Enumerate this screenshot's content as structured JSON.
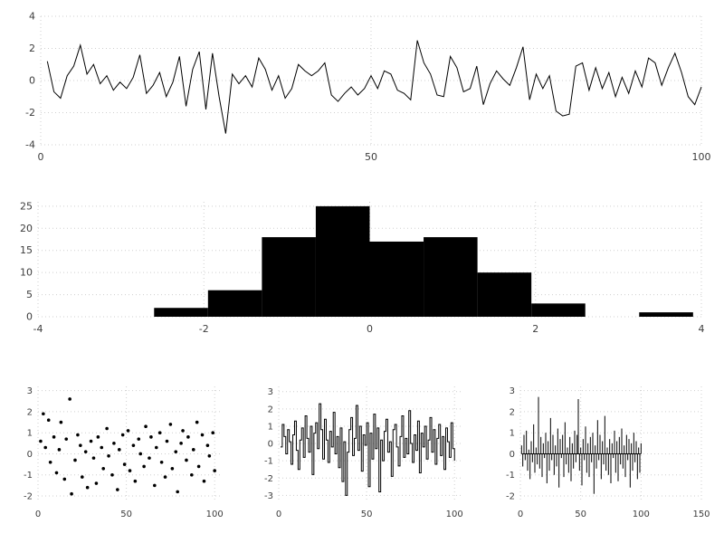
{
  "figure": {
    "background": "#ffffff",
    "series_color": "#000000",
    "grid_color": "#cfcfcf",
    "tick_label_color": "#3c3c3c"
  },
  "chart_data": [
    {
      "id": "line",
      "type": "line",
      "title": "",
      "xlabel": "",
      "ylabel": "",
      "xlim": [
        0,
        100
      ],
      "ylim": [
        -4,
        4
      ],
      "xticks": [
        0,
        50,
        100
      ],
      "yticks": [
        -4,
        -2,
        0,
        2,
        4
      ],
      "grid": true,
      "x_start": 1,
      "y": [
        1.2,
        -0.7,
        -1.1,
        0.3,
        0.9,
        2.2,
        0.4,
        1.0,
        -0.2,
        0.3,
        -0.6,
        -0.1,
        -0.5,
        0.2,
        1.6,
        -0.8,
        -0.3,
        0.5,
        -1.0,
        -0.1,
        1.5,
        -1.6,
        0.7,
        1.8,
        -1.8,
        1.7,
        -1.0,
        -3.3,
        0.4,
        -0.2,
        0.3,
        -0.4,
        1.4,
        0.7,
        -0.6,
        0.3,
        -1.1,
        -0.5,
        1.0,
        0.6,
        0.3,
        0.6,
        1.1,
        -0.9,
        -1.3,
        -0.8,
        -0.4,
        -0.9,
        -0.5,
        0.3,
        -0.5,
        0.6,
        0.4,
        -0.6,
        -0.8,
        -1.2,
        2.5,
        1.1,
        0.4,
        -0.9,
        -1.0,
        1.5,
        0.8,
        -0.7,
        -0.5,
        0.9,
        -1.5,
        -0.2,
        0.6,
        0.1,
        -0.3,
        0.8,
        2.1,
        -1.2,
        0.4,
        -0.5,
        0.3,
        -1.9,
        -2.2,
        -2.1,
        0.9,
        1.1,
        -0.6,
        0.8,
        -0.5,
        0.5,
        -1.0,
        0.2,
        -0.8,
        0.6,
        -0.4,
        1.4,
        1.1,
        -0.3,
        0.8,
        1.7,
        0.5,
        -1.0,
        -1.5,
        -0.4
      ]
    },
    {
      "id": "hist",
      "type": "histogram",
      "title": "",
      "xlabel": "",
      "ylabel": "",
      "xlim": [
        -4,
        4
      ],
      "ylim": [
        0,
        26
      ],
      "xticks": [
        -4,
        -2,
        0,
        2,
        4
      ],
      "yticks": [
        0,
        5,
        10,
        15,
        20,
        25
      ],
      "grid": true,
      "bin_edges": [
        -2.6,
        -1.95,
        -1.3,
        -0.65,
        0.0,
        0.65,
        1.3,
        1.95,
        2.6,
        3.25,
        3.9
      ],
      "counts": [
        2,
        6,
        18,
        25,
        17,
        18,
        10,
        3,
        0,
        1
      ]
    },
    {
      "id": "scatter",
      "type": "scatter",
      "title": "",
      "xlabel": "",
      "ylabel": "",
      "xlim": [
        0,
        104
      ],
      "ylim": [
        -2.3,
        3.2
      ],
      "xticks": [
        0,
        50,
        100
      ],
      "yticks": [
        -2,
        -1,
        0,
        1,
        2,
        3
      ],
      "grid": true,
      "x": [
        1.5,
        3,
        4.2,
        6,
        7,
        9,
        10.5,
        12,
        13,
        15,
        16,
        18,
        19,
        21,
        22.5,
        24,
        25,
        27,
        28,
        30,
        31.5,
        33,
        34,
        36,
        37,
        39,
        40,
        42,
        43,
        45,
        46,
        48,
        49,
        51,
        52,
        54,
        55,
        57,
        58,
        60,
        61,
        63,
        64,
        66,
        67,
        69,
        70,
        72,
        73,
        75,
        76,
        78,
        79,
        81,
        82,
        84,
        85,
        87,
        88,
        90,
        91,
        93,
        94,
        96,
        97,
        99,
        100
      ],
      "y": [
        0.6,
        1.9,
        0.3,
        1.6,
        -0.4,
        0.8,
        -0.9,
        0.2,
        1.5,
        -1.2,
        0.7,
        2.6,
        -1.9,
        -0.3,
        0.9,
        0.4,
        -1.1,
        0.1,
        -1.6,
        0.6,
        -0.2,
        -1.4,
        0.8,
        0.3,
        -0.7,
        1.2,
        -0.1,
        -1.0,
        0.5,
        -1.7,
        0.2,
        0.9,
        -0.5,
        1.1,
        -0.8,
        0.4,
        -1.3,
        0.7,
        0.0,
        -0.6,
        1.3,
        -0.2,
        0.8,
        -1.5,
        0.3,
        1.0,
        -0.4,
        -1.1,
        0.6,
        1.4,
        -0.7,
        0.1,
        -1.8,
        0.5,
        1.1,
        -0.3,
        0.8,
        -1.0,
        0.2,
        1.5,
        -0.6,
        0.9,
        -1.3,
        0.4,
        -0.1,
        1.0,
        -0.8
      ]
    },
    {
      "id": "step",
      "type": "step",
      "title": "",
      "xlabel": "",
      "ylabel": "",
      "xlim": [
        0,
        104
      ],
      "ylim": [
        -3.4,
        3.3
      ],
      "xticks": [
        0,
        50,
        100
      ],
      "yticks": [
        -3,
        -2,
        -1,
        0,
        1,
        2,
        3
      ],
      "grid": true,
      "x_start": 1,
      "y": [
        -0.2,
        1.1,
        0.4,
        -0.6,
        0.8,
        0.1,
        -1.2,
        0.5,
        1.3,
        -0.4,
        -1.5,
        0.2,
        0.9,
        -0.8,
        1.6,
        0.3,
        -0.5,
        1.0,
        -1.8,
        0.6,
        1.2,
        -0.3,
        2.3,
        0.8,
        -0.9,
        1.4,
        0.2,
        -1.1,
        0.7,
        -0.2,
        1.8,
        -0.6,
        0.4,
        -1.4,
        0.9,
        -2.2,
        0.1,
        -3.0,
        -0.5,
        0.8,
        1.5,
        -0.7,
        0.3,
        2.2,
        -0.4,
        1.0,
        -1.6,
        0.5,
        -0.1,
        1.2,
        -2.5,
        0.6,
        -0.9,
        1.7,
        -0.3,
        0.9,
        -2.8,
        0.2,
        -1.0,
        0.7,
        1.4,
        -0.5,
        0.1,
        -1.9,
        0.8,
        1.1,
        -0.2,
        -1.3,
        0.4,
        1.6,
        -0.8,
        0.3,
        -0.6,
        1.9,
        0.0,
        -1.1,
        0.5,
        -0.4,
        1.3,
        -1.7,
        0.6,
        -0.2,
        1.0,
        -0.9,
        0.2,
        1.5,
        -0.5,
        0.8,
        -1.2,
        0.3,
        1.1,
        -0.7,
        0.4,
        -1.5,
        0.9,
        0.1,
        -0.8,
        1.2,
        -0.3,
        -1.0
      ]
    },
    {
      "id": "stem",
      "type": "stem",
      "title": "",
      "xlabel": "",
      "ylabel": "",
      "xlim": [
        0,
        150
      ],
      "ylim": [
        -2.3,
        3.2
      ],
      "xticks": [
        0,
        50,
        100,
        150
      ],
      "yticks": [
        -2,
        -1,
        0,
        1,
        2,
        3
      ],
      "grid": true,
      "x_start": 1,
      "y": [
        0.4,
        -0.6,
        0.9,
        -0.3,
        1.1,
        -0.8,
        0.2,
        -1.2,
        0.6,
        -0.4,
        1.4,
        -0.9,
        0.3,
        -0.5,
        2.7,
        -0.7,
        0.8,
        -1.1,
        0.5,
        -0.2,
        1.0,
        -1.4,
        0.6,
        -0.8,
        1.7,
        -0.3,
        0.9,
        -1.0,
        0.4,
        -0.6,
        1.2,
        -1.6,
        0.7,
        -0.2,
        0.9,
        -1.1,
        1.5,
        -0.5,
        0.3,
        -0.9,
        0.8,
        -1.3,
        0.5,
        -0.7,
        1.1,
        -0.4,
        0.9,
        2.6,
        -0.8,
        0.3,
        -1.5,
        0.7,
        -0.3,
        1.3,
        -0.9,
        0.5,
        -1.1,
        0.8,
        -0.4,
        1.0,
        -1.9,
        0.4,
        -0.7,
        1.6,
        -0.3,
        0.9,
        -1.2,
        0.6,
        -0.5,
        1.8,
        -0.8,
        0.3,
        -1.0,
        0.7,
        -1.4,
        0.5,
        -0.2,
        1.1,
        -0.9,
        0.6,
        -1.3,
        0.8,
        -0.5,
        1.2,
        -0.7,
        0.4,
        -1.1,
        0.9,
        -0.3,
        0.7,
        -1.6,
        0.5,
        -0.8,
        1.0,
        -0.4,
        0.6,
        -1.2,
        0.3,
        -0.9,
        0.5
      ]
    }
  ]
}
